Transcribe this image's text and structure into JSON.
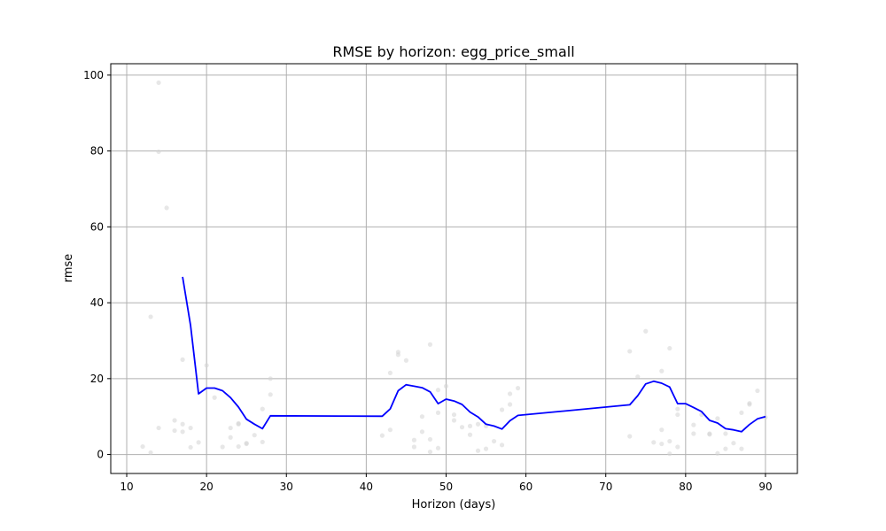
{
  "chart_data": {
    "type": "line",
    "title": "RMSE by horizon: egg_price_small",
    "xlabel": "Horizon (days)",
    "ylabel": "rmse",
    "xlim": [
      8,
      94
    ],
    "ylim": [
      -5,
      103
    ],
    "xticks": [
      "10",
      "20",
      "30",
      "40",
      "50",
      "60",
      "70",
      "80",
      "90"
    ],
    "yticks": [
      "0",
      "20",
      "40",
      "60",
      "80",
      "100"
    ],
    "grid": true,
    "series": [
      {
        "kind": "line",
        "color": "#0000ff",
        "x": [
          17,
          18,
          19,
          20,
          21,
          22,
          23,
          24,
          25,
          26,
          27,
          28,
          42,
          43,
          44,
          45,
          46,
          47,
          48,
          49,
          50,
          51,
          52,
          53,
          54,
          55,
          56,
          57,
          58,
          59,
          73,
          74,
          75,
          76,
          77,
          78,
          79,
          80,
          81,
          82,
          83,
          84,
          85,
          86,
          87,
          88,
          89,
          90
        ],
        "y": [
          46.8,
          34.0,
          16.0,
          17.5,
          17.5,
          16.8,
          15.0,
          12.5,
          9.3,
          8.0,
          6.8,
          10.2,
          10.1,
          12.0,
          16.8,
          18.4,
          18.0,
          17.6,
          16.5,
          13.4,
          14.6,
          14.1,
          13.2,
          11.2,
          9.9,
          8.0,
          7.5,
          6.7,
          8.9,
          10.3,
          13.1,
          15.5,
          18.6,
          19.3,
          18.8,
          17.8,
          13.4,
          13.4,
          12.4,
          11.3,
          9.0,
          8.3,
          6.8,
          6.5,
          6.0,
          7.9,
          9.4,
          10.0
        ]
      },
      {
        "kind": "scatter",
        "color": "#d3d3d3",
        "x": [
          12,
          13,
          13,
          14,
          14,
          14,
          15,
          16,
          16,
          17,
          17,
          17,
          18,
          18,
          19,
          20,
          21,
          22,
          23,
          23,
          24,
          24,
          24,
          25,
          25,
          26,
          27,
          27,
          28,
          28,
          42,
          43,
          43,
          44,
          44,
          45,
          46,
          46,
          47,
          47,
          48,
          48,
          48,
          49,
          49,
          49,
          50,
          51,
          51,
          52,
          53,
          53,
          54,
          54,
          55,
          55,
          56,
          57,
          57,
          58,
          58,
          59,
          73,
          73,
          74,
          75,
          76,
          77,
          77,
          77,
          78,
          78,
          78,
          79,
          79,
          79,
          81,
          81,
          82,
          83,
          83,
          84,
          84,
          85,
          85,
          86,
          87,
          87,
          88,
          88,
          89,
          90
        ],
        "y": [
          2.1,
          0.5,
          36.3,
          98.0,
          79.8,
          7.0,
          65.0,
          6.3,
          9.0,
          25.0,
          8.0,
          6.0,
          1.9,
          7.0,
          3.2,
          23.5,
          15.0,
          2.0,
          7.0,
          4.5,
          8.2,
          8.0,
          2.1,
          2.8,
          3.0,
          5.1,
          12.0,
          3.3,
          20.0,
          15.8,
          5.0,
          21.5,
          6.5,
          27.0,
          26.3,
          24.8,
          3.8,
          2.0,
          10.0,
          6.0,
          29.0,
          4.0,
          0.7,
          17.0,
          11.0,
          1.7,
          18.0,
          10.5,
          9.0,
          7.2,
          7.5,
          5.2,
          8.0,
          1.0,
          1.5,
          7.5,
          3.5,
          11.8,
          2.5,
          16.0,
          13.2,
          17.5,
          27.2,
          4.8,
          20.5,
          32.5,
          3.2,
          22.0,
          6.5,
          2.8,
          28.0,
          3.5,
          0.2,
          12.0,
          10.5,
          2.0,
          7.8,
          5.5,
          10.5,
          5.5,
          5.3,
          9.5,
          0.3,
          5.5,
          1.5,
          3.0,
          11.0,
          1.5,
          13.5,
          13.2,
          16.8,
          9.8
        ]
      }
    ]
  }
}
